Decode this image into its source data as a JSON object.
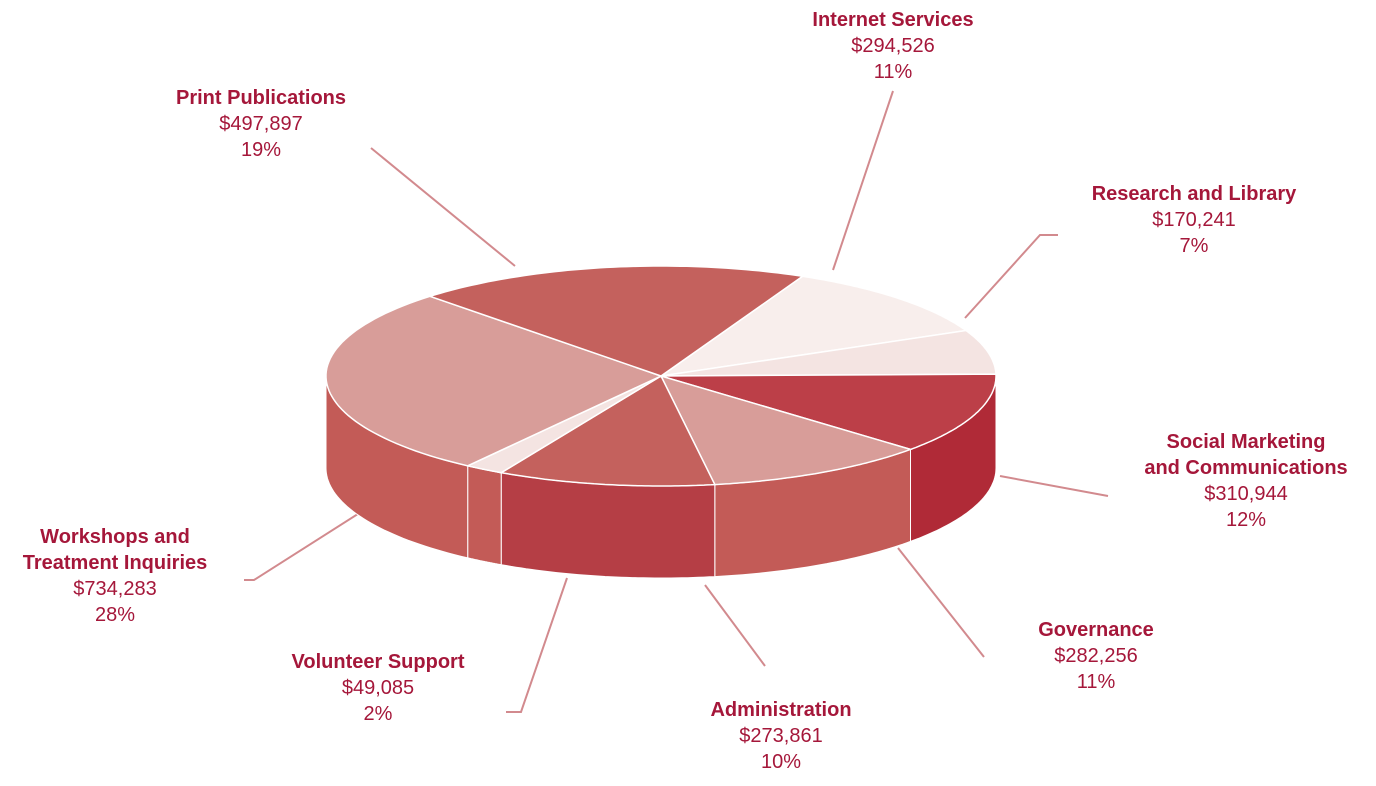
{
  "chart_data": {
    "type": "pie",
    "style": "3d exploded",
    "colors": {
      "text": "#a5173a",
      "leader": "#d28a8e",
      "top_medium": "#c4615d",
      "top_light": "#d89d99",
      "top_pale": "#f8eeec",
      "top_dark": "#bc3f48",
      "side_medium": "#c35b57",
      "side_dark": "#b53e45",
      "side_darker": "#b02a37"
    },
    "slices": [
      {
        "name_lines": [
          "Internet Services"
        ],
        "amount": "$294,526",
        "percent": "11%",
        "value": 294526,
        "color": "#f8eeec"
      },
      {
        "name_lines": [
          "Research and Library"
        ],
        "amount": "$170,241",
        "percent": "7%",
        "value": 170241,
        "color": "#f4e4e2"
      },
      {
        "name_lines": [
          "Social Marketing",
          "and Communications"
        ],
        "amount": "$310,944",
        "percent": "12%",
        "value": 310944,
        "color": "#bc3f48"
      },
      {
        "name_lines": [
          "Governance"
        ],
        "amount": "$282,256",
        "percent": "11%",
        "value": 282256,
        "color": "#d89d99"
      },
      {
        "name_lines": [
          "Administration"
        ],
        "amount": "$273,861",
        "percent": "10%",
        "value": 273861,
        "color": "#c4615d"
      },
      {
        "name_lines": [
          "Volunteer Support"
        ],
        "amount": "$49,085",
        "percent": "2%",
        "value": 49085,
        "color": "#f4e4e2"
      },
      {
        "name_lines": [
          "Workshops and",
          "Treatment Inquiries"
        ],
        "amount": "$734,283",
        "percent": "28%",
        "value": 734283,
        "color": "#d89d99"
      },
      {
        "name_lines": [
          "Print Publications"
        ],
        "amount": "$497,897",
        "percent": "19%",
        "value": 497897,
        "color": "#c4615d"
      }
    ]
  }
}
